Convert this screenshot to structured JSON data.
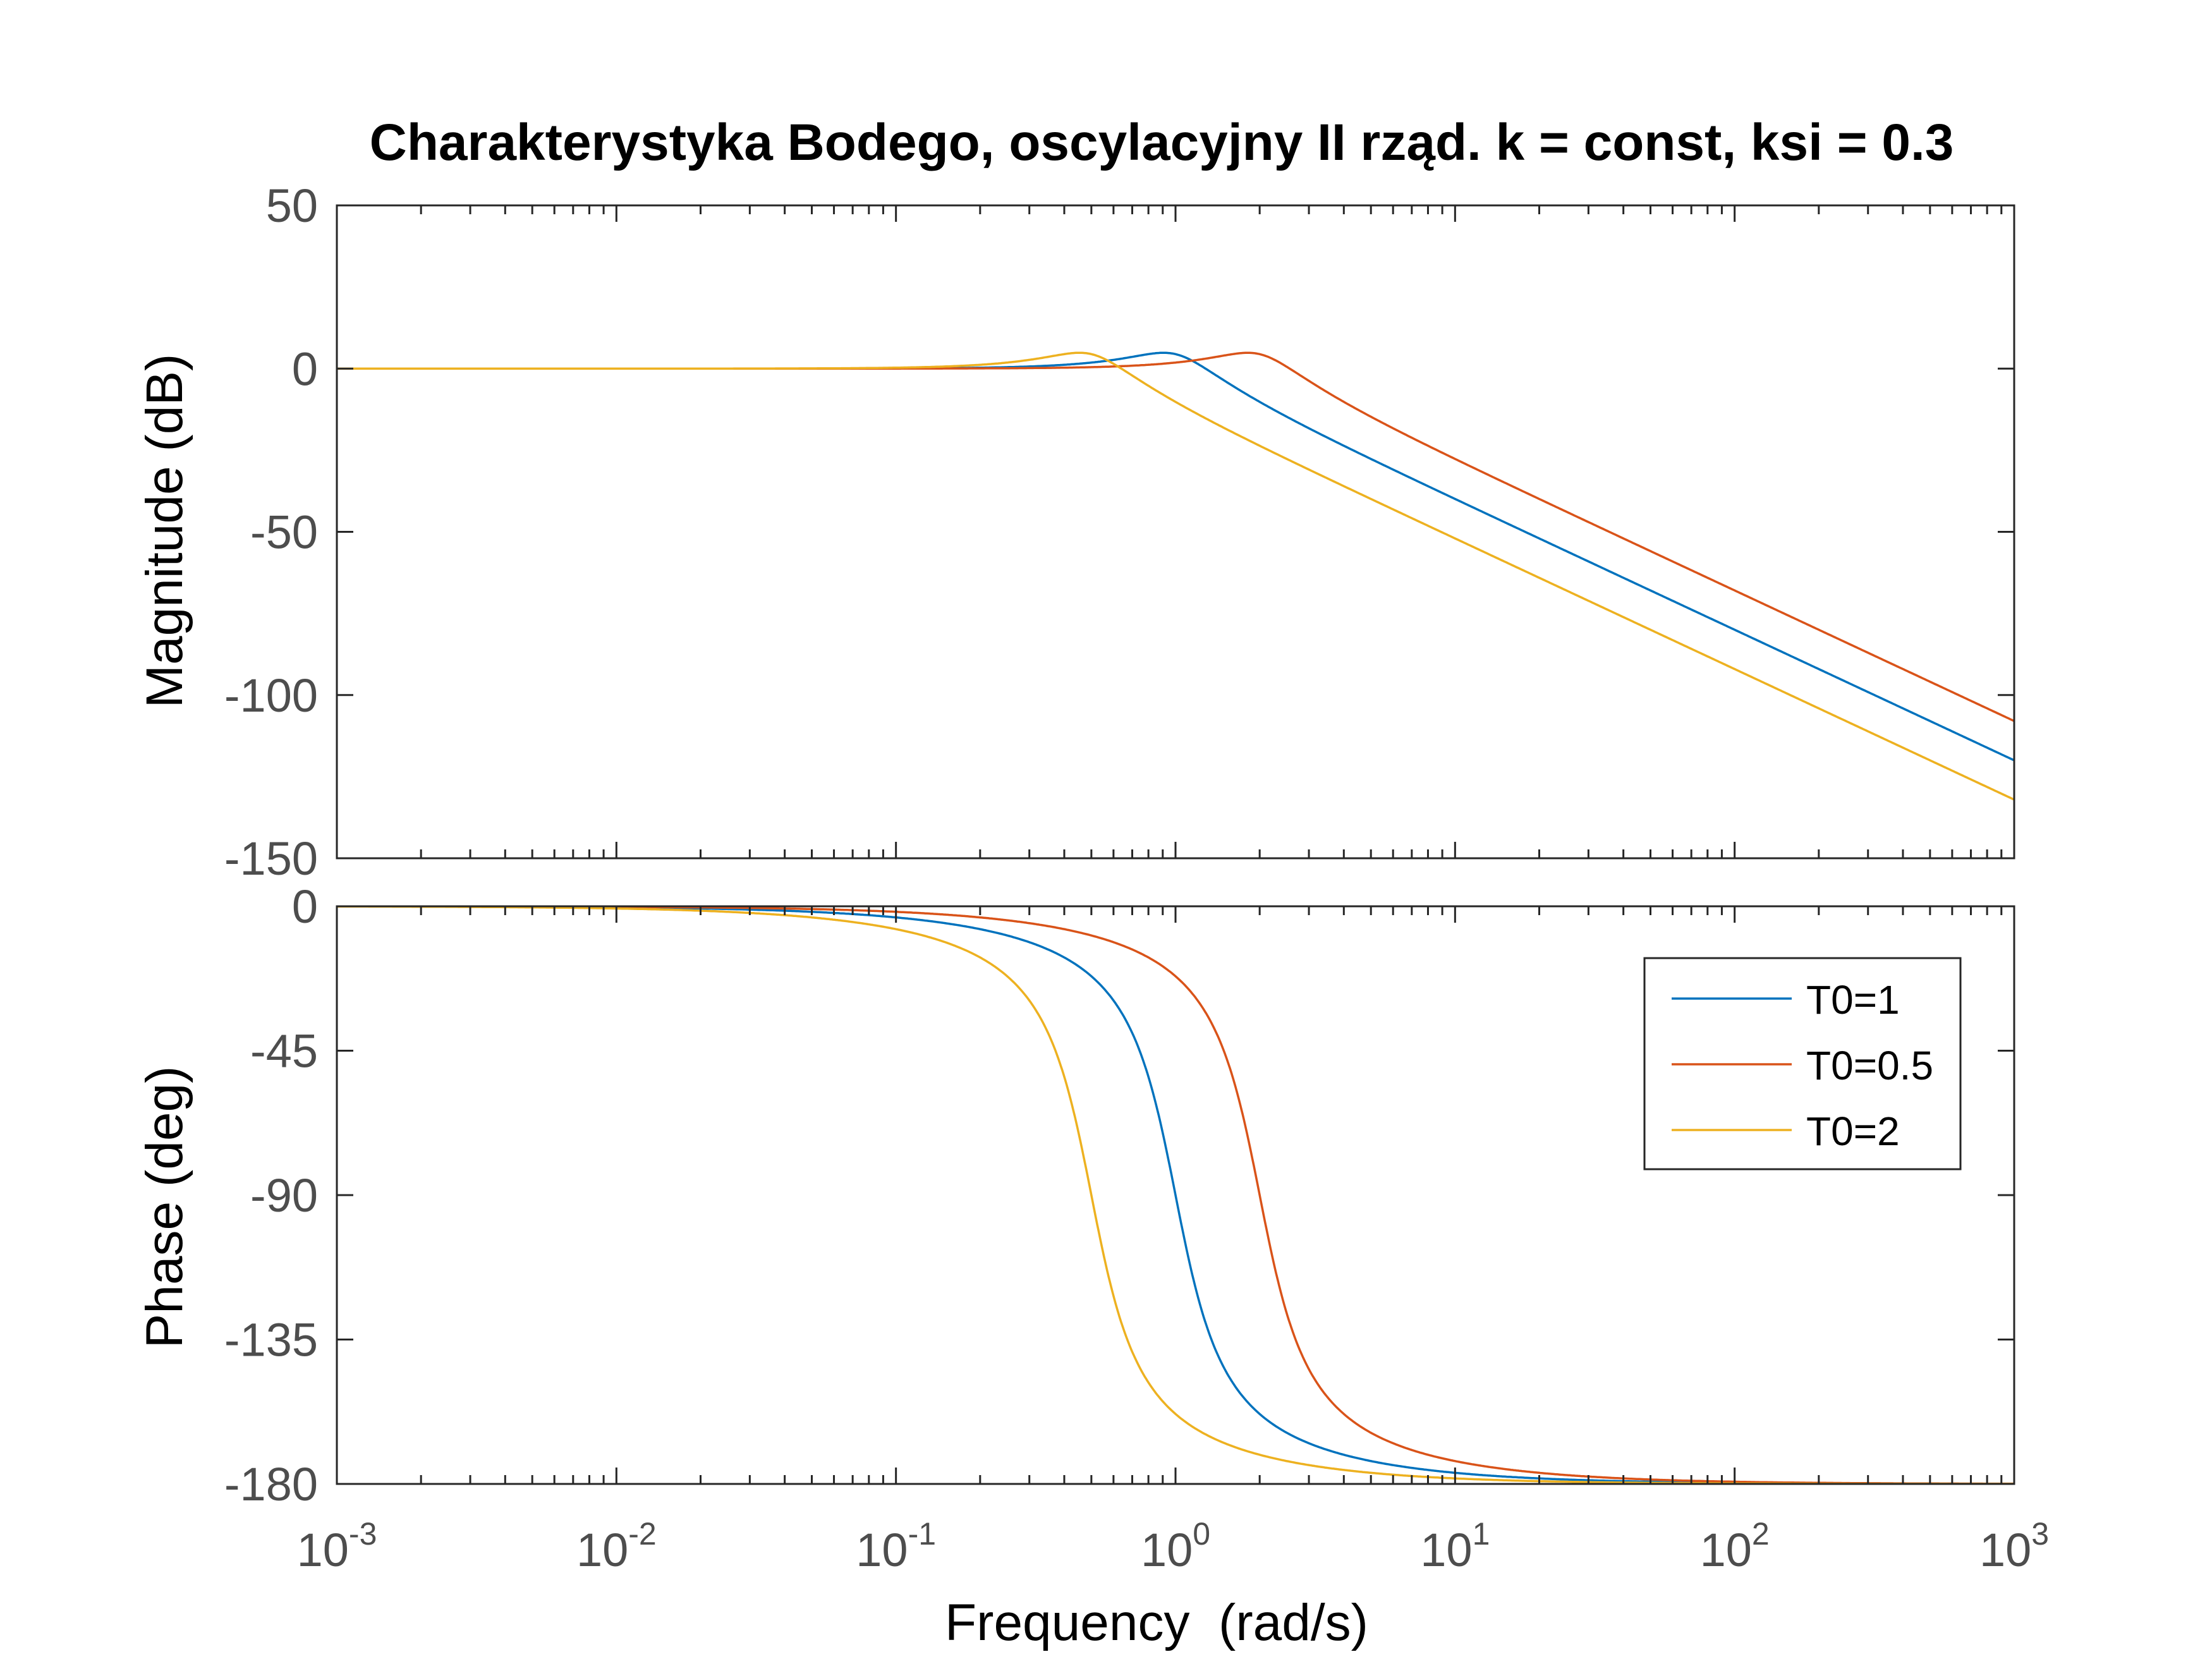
{
  "chart_data": {
    "type": "line",
    "title": "Charakterystyka Bodego, oscylacyjny II rząd. k = const, ksi = 0.3",
    "xlabel": "Frequency  (rad/s)",
    "x_scale": "log",
    "xlim": [
      0.001,
      1000
    ],
    "x_ticks": [
      {
        "base": "10",
        "exp": "-3",
        "value": 0.001
      },
      {
        "base": "10",
        "exp": "-2",
        "value": 0.01
      },
      {
        "base": "10",
        "exp": "-1",
        "value": 0.1
      },
      {
        "base": "10",
        "exp": "0",
        "value": 1
      },
      {
        "base": "10",
        "exp": "1",
        "value": 10
      },
      {
        "base": "10",
        "exp": "2",
        "value": 100
      },
      {
        "base": "10",
        "exp": "3",
        "value": 1000
      }
    ],
    "magnitude": {
      "ylabel": "Magnitude (dB)",
      "ylim": [
        -150,
        50
      ],
      "y_ticks": [
        50,
        0,
        -50,
        -100,
        -150
      ],
      "grid": false
    },
    "phase": {
      "ylabel": "Phase (deg)",
      "ylim": [
        -180,
        0
      ],
      "y_ticks": [
        0,
        -45,
        -90,
        -135,
        -180
      ],
      "grid": false
    },
    "system": {
      "damping": 0.3,
      "gain": 1
    },
    "series": [
      {
        "name": "T0=1",
        "color": "#0072bd",
        "T0": 1,
        "magnitude_db": [
          [
            0.001,
            0
          ],
          [
            0.1,
            0.02
          ],
          [
            0.5,
            1.4
          ],
          [
            0.95,
            4.8
          ],
          [
            2,
            -10.1
          ],
          [
            10,
            -40
          ],
          [
            100,
            -80
          ],
          [
            1000,
            -120
          ]
        ],
        "phase_deg": [
          [
            0.001,
            0
          ],
          [
            0.1,
            -3.5
          ],
          [
            0.5,
            -21.8
          ],
          [
            1,
            -90
          ],
          [
            2,
            -158.2
          ],
          [
            10,
            -176.5
          ],
          [
            1000,
            -180
          ]
        ]
      },
      {
        "name": "T0=0.5",
        "color": "#d95319",
        "T0": 0.5,
        "magnitude_db": [
          [
            0.001,
            0
          ],
          [
            0.1,
            0
          ],
          [
            1,
            1.4
          ],
          [
            1.9,
            4.8
          ],
          [
            4,
            -10.1
          ],
          [
            10,
            -28
          ],
          [
            100,
            -68
          ],
          [
            1000,
            -108
          ]
        ],
        "phase_deg": [
          [
            0.001,
            0
          ],
          [
            0.2,
            -3.5
          ],
          [
            1,
            -21.8
          ],
          [
            2,
            -90
          ],
          [
            4,
            -158.2
          ],
          [
            20,
            -176.5
          ],
          [
            1000,
            -180
          ]
        ]
      },
      {
        "name": "T0=2",
        "color": "#edb120",
        "T0": 2,
        "magnitude_db": [
          [
            0.001,
            0
          ],
          [
            0.1,
            0.1
          ],
          [
            0.48,
            4.8
          ],
          [
            1,
            -10.1
          ],
          [
            10,
            -52
          ],
          [
            100,
            -92
          ],
          [
            1000,
            -132
          ]
        ],
        "phase_deg": [
          [
            0.001,
            0
          ],
          [
            0.05,
            -3.5
          ],
          [
            0.25,
            -21.8
          ],
          [
            0.5,
            -90
          ],
          [
            1,
            -158.2
          ],
          [
            5,
            -176.5
          ],
          [
            1000,
            -180
          ]
        ]
      }
    ],
    "legend": {
      "location": "top-right of phase plot",
      "entries": [
        "T0=1",
        "T0=0.5",
        "T0=2"
      ]
    }
  }
}
